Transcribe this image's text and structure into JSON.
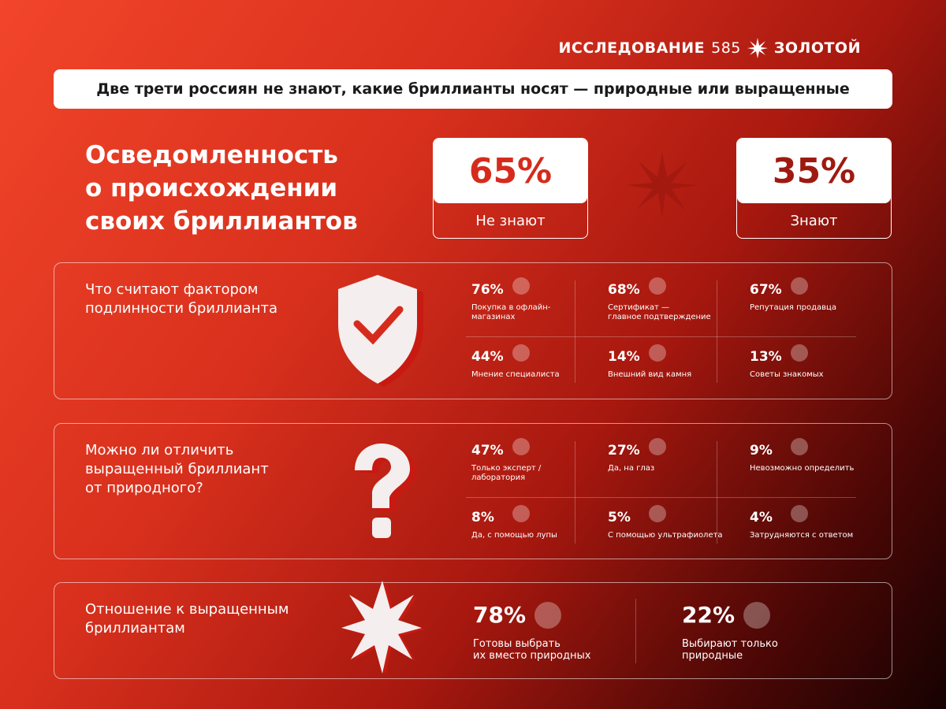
{
  "brand": {
    "left": "ИССЛЕДОВАНИЕ",
    "number": "585",
    "right": "ЗОЛОТОЙ"
  },
  "banner": "Две трети россиян не знают, какие бриллианты носят — природные или выращенные",
  "awareness": {
    "title": [
      "Осведомленность",
      "о происхождении",
      "своих бриллиантов"
    ],
    "cards": [
      {
        "value": "65%",
        "label": "Не знают"
      },
      {
        "value": "35%",
        "label": "Знают"
      }
    ]
  },
  "sections": [
    {
      "title": [
        "Что считают фактором",
        "подлинности бриллианта"
      ],
      "items": [
        {
          "value": "76%",
          "label": [
            "Покупка в офлайн-",
            "магазинах"
          ]
        },
        {
          "value": "68%",
          "label": [
            "Сертификат —",
            "главное подтверждение"
          ]
        },
        {
          "value": "67%",
          "label": [
            "Репутация продавца"
          ]
        },
        {
          "value": "44%",
          "label": [
            "Мнение специалиста"
          ]
        },
        {
          "value": "14%",
          "label": [
            "Внешний вид камня"
          ]
        },
        {
          "value": "13%",
          "label": [
            "Советы знакомых"
          ]
        }
      ]
    },
    {
      "title": [
        "Можно ли отличить",
        "выращенный бриллиант",
        "от природного?"
      ],
      "items": [
        {
          "value": "47%",
          "label": [
            "Только эксперт /",
            "лаборатория"
          ]
        },
        {
          "value": "27%",
          "label": [
            "Да, на глаз"
          ]
        },
        {
          "value": "9%",
          "label": [
            "Невозможно определить"
          ]
        },
        {
          "value": "8%",
          "label": [
            "Да, с помощью лупы"
          ]
        },
        {
          "value": "5%",
          "label": [
            "С помощью ультрафиолета"
          ]
        },
        {
          "value": "4%",
          "label": [
            "Затрудняются с ответом"
          ]
        }
      ]
    },
    {
      "title": [
        "Отношение к выращенным",
        "бриллиантам"
      ],
      "items": [
        {
          "value": "78%",
          "label": [
            "Готовы выбрать",
            "их вместо природных"
          ]
        },
        {
          "value": "22%",
          "label": [
            "Выбирают только",
            "природные"
          ]
        }
      ]
    }
  ]
}
